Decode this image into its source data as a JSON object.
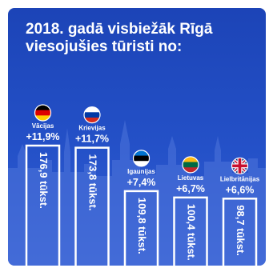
{
  "title_lines": [
    "2018. gadā visbiežāk Rīgā",
    "viesojušies tūristi no:"
  ],
  "colors": {
    "background": "#2451c8",
    "bars": "#ffffff",
    "text": "#ffffff"
  },
  "chart_data": {
    "type": "bar",
    "unit": "tūkst.",
    "categories": [
      "Vācijas",
      "Krievijas",
      "Igaunijas",
      "Lietuvas",
      "Lielbritānijas"
    ],
    "values": [
      176.9,
      173.8,
      109.8,
      100.4,
      98.7
    ],
    "value_labels": [
      "176,9 tūkst.",
      "173,8 tūkst.",
      "109,8 tūkst.",
      "100,4 tūkst.",
      "98,7 tūkst."
    ],
    "growth_labels": [
      "+11,9%",
      "+11,7%",
      "+7,4%",
      "+6,7%",
      "+6,6%"
    ],
    "flags": [
      "germany-flag",
      "russia-flag",
      "estonia-flag",
      "lithuania-flag",
      "uk-flag"
    ]
  }
}
